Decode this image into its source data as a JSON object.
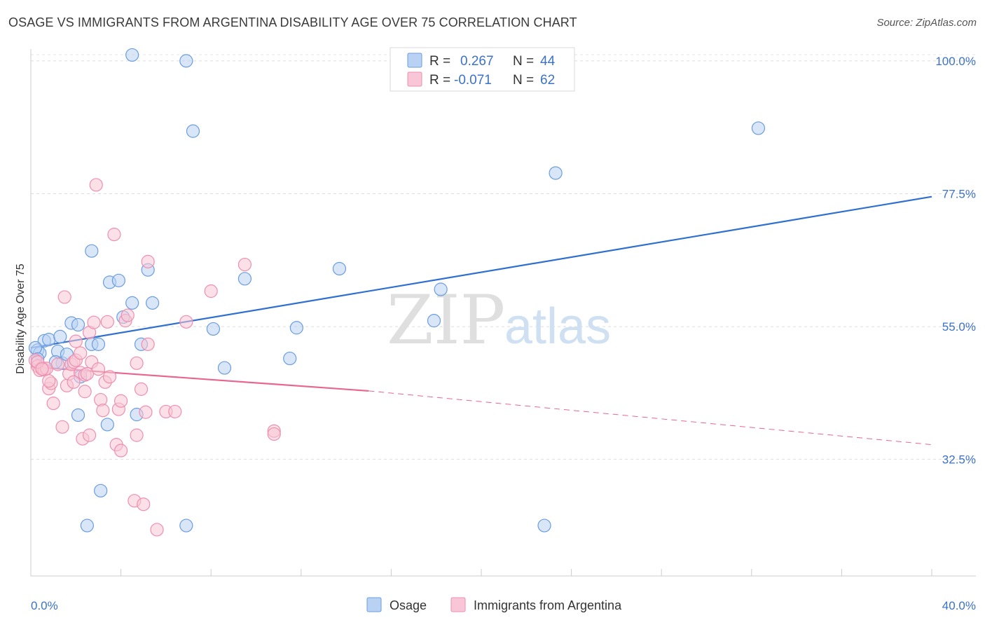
{
  "header": {
    "title": "OSAGE VS IMMIGRANTS FROM ARGENTINA DISABILITY AGE OVER 75 CORRELATION CHART",
    "source": "Source: ZipAtlas.com"
  },
  "watermark": {
    "zip": "ZIP",
    "atlas": "atlas"
  },
  "colors": {
    "osage": "#6a9de0",
    "osage_fill": "#b9d2f3",
    "osage_line": "#2f6fd0",
    "argentina": "#ee8fb0",
    "argentina_fill": "#f8c6d6",
    "argentina_line": "#e8678f",
    "tick_text": "#3b72c9"
  },
  "legend": {
    "rows": [
      {
        "r_label": "R =",
        "r_value": "0.267",
        "n_label": "N =",
        "n_value": "44"
      },
      {
        "r_label": "R =",
        "r_value": "-0.071",
        "n_label": "N =",
        "n_value": "62"
      }
    ]
  },
  "bottom_legend": {
    "osage": "Osage",
    "argentina": "Immigrants from Argentina"
  },
  "chart_data": {
    "type": "scatter",
    "title": "OSAGE VS IMMIGRANTS FROM ARGENTINA DISABILITY AGE OVER 75 CORRELATION CHART",
    "xlabel": "",
    "ylabel": "Disability Age Over 75",
    "xlim": [
      0,
      40
    ],
    "ylim": [
      13,
      102
    ],
    "x_tick_labels": [
      "0.0%",
      "40.0%"
    ],
    "y_ticks": [
      32.5,
      55.0,
      77.5,
      100.0
    ],
    "y_tick_labels": [
      "32.5%",
      "55.0%",
      "77.5%",
      "100.0%"
    ],
    "grid": true,
    "legend_position": "top-center",
    "series": [
      {
        "name": "Osage",
        "points": [
          [
            0.3,
            51.0
          ],
          [
            0.4,
            50.5
          ],
          [
            0.6,
            52.6
          ],
          [
            0.8,
            52.8
          ],
          [
            1.3,
            53.3
          ],
          [
            1.2,
            50.8
          ],
          [
            1.4,
            48.8
          ],
          [
            1.6,
            50.3
          ],
          [
            1.8,
            55.6
          ],
          [
            2.1,
            55.3
          ],
          [
            2.2,
            46.5
          ],
          [
            2.1,
            40.0
          ],
          [
            2.7,
            52.0
          ],
          [
            3.0,
            52.0
          ],
          [
            2.7,
            67.8
          ],
          [
            3.4,
            38.4
          ],
          [
            3.5,
            62.5
          ],
          [
            3.9,
            62.8
          ],
          [
            4.1,
            56.6
          ],
          [
            4.5,
            59.0
          ],
          [
            4.7,
            40.1
          ],
          [
            4.5,
            101.0
          ],
          [
            4.9,
            52.0
          ],
          [
            5.2,
            64.6
          ],
          [
            5.4,
            59.0
          ],
          [
            3.1,
            27.2
          ],
          [
            2.5,
            21.3
          ],
          [
            6.9,
            100.0
          ],
          [
            7.2,
            88.1
          ],
          [
            8.1,
            54.6
          ],
          [
            8.6,
            48.0
          ],
          [
            9.5,
            63.1
          ],
          [
            11.5,
            49.6
          ],
          [
            11.8,
            54.8
          ],
          [
            13.7,
            64.8
          ],
          [
            17.9,
            56.0
          ],
          [
            18.2,
            61.3
          ],
          [
            23.3,
            81.0
          ],
          [
            32.3,
            88.6
          ],
          [
            6.9,
            21.3
          ],
          [
            22.8,
            21.3
          ],
          [
            0.2,
            51.4
          ],
          [
            0.3,
            49.5
          ],
          [
            1.1,
            49.0
          ]
        ]
      },
      {
        "name": "Immigrants from Argentina",
        "points": [
          [
            0.2,
            49.3
          ],
          [
            0.3,
            48.3
          ],
          [
            0.4,
            47.6
          ],
          [
            0.5,
            48.0
          ],
          [
            0.6,
            47.7
          ],
          [
            0.7,
            47.9
          ],
          [
            0.8,
            44.5
          ],
          [
            0.9,
            45.4
          ],
          [
            1.0,
            42.0
          ],
          [
            1.4,
            38.0
          ],
          [
            1.5,
            60.0
          ],
          [
            1.6,
            45.0
          ],
          [
            1.7,
            47.0
          ],
          [
            1.8,
            48.6
          ],
          [
            1.9,
            49.0
          ],
          [
            2.0,
            49.3
          ],
          [
            2.0,
            52.5
          ],
          [
            2.2,
            50.5
          ],
          [
            2.2,
            47.2
          ],
          [
            2.3,
            36.0
          ],
          [
            2.4,
            46.8
          ],
          [
            2.5,
            47.0
          ],
          [
            2.6,
            36.6
          ],
          [
            2.6,
            54.0
          ],
          [
            2.7,
            49.0
          ],
          [
            2.8,
            55.7
          ],
          [
            2.9,
            79.0
          ],
          [
            3.0,
            47.8
          ],
          [
            3.1,
            42.6
          ],
          [
            3.2,
            40.8
          ],
          [
            3.3,
            45.6
          ],
          [
            3.4,
            55.8
          ],
          [
            3.5,
            46.5
          ],
          [
            3.7,
            70.6
          ],
          [
            3.8,
            35.0
          ],
          [
            3.9,
            41.0
          ],
          [
            4.0,
            42.4
          ],
          [
            4.0,
            34.0
          ],
          [
            4.2,
            56.0
          ],
          [
            4.3,
            56.9
          ],
          [
            4.6,
            25.5
          ],
          [
            4.7,
            48.8
          ],
          [
            4.7,
            36.6
          ],
          [
            4.9,
            44.4
          ],
          [
            5.0,
            24.9
          ],
          [
            5.1,
            40.5
          ],
          [
            5.2,
            52.0
          ],
          [
            5.2,
            66.0
          ],
          [
            5.6,
            20.6
          ],
          [
            6.0,
            40.6
          ],
          [
            6.4,
            40.6
          ],
          [
            6.9,
            55.8
          ],
          [
            8.0,
            61.0
          ],
          [
            9.5,
            65.5
          ],
          [
            10.8,
            37.3
          ],
          [
            10.8,
            36.8
          ],
          [
            0.3,
            49.0
          ],
          [
            0.5,
            47.8
          ],
          [
            0.8,
            45.8
          ],
          [
            1.2,
            48.6
          ],
          [
            1.9,
            45.6
          ],
          [
            2.4,
            44.0
          ]
        ]
      }
    ],
    "trend_lines": [
      {
        "series": "Osage",
        "x0": 0.0,
        "y0": 51.4,
        "x1": 40.0,
        "y1": 77.0,
        "style": "solid"
      },
      {
        "series": "Immigrants from Argentina",
        "x0": 0.0,
        "y0": 48.2,
        "x1": 15.0,
        "y1": 44.1,
        "style": "solid"
      },
      {
        "series": "Immigrants from Argentina",
        "x0": 15.0,
        "y0": 44.1,
        "x1": 40.0,
        "y1": 35.0,
        "style": "dashed"
      }
    ]
  }
}
